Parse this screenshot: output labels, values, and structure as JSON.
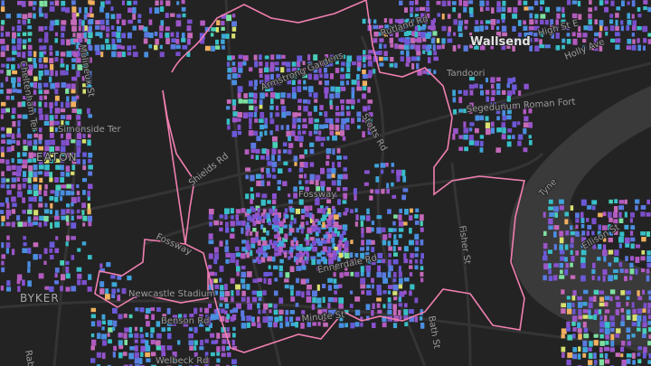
{
  "map": {
    "labels": {
      "town": "Wallsend",
      "high_st": "High St E",
      "holly": "Holly Ave",
      "rutland": "Rutland Rd",
      "tandoori": "Tandoori",
      "fort": "Segedunum Roman Fort",
      "tyne": "Tyne",
      "stotts": "Stotts Rd",
      "fossway_1": "Fossway",
      "fossway_2": "Fossway",
      "shields": "Shields Rd",
      "fisher": "Fisher St",
      "ellison": "Ellison St",
      "ennerdale": "Ennerdale Rd",
      "stadium": "Newcastle Stadium",
      "benson": "Benson Rd",
      "welbeck": "Welbeck Rd",
      "minute": "Minute St",
      "bath": "Bath St",
      "heaton": "EATON",
      "byker": "BYKER",
      "simonside": "Simonside Ter",
      "molineux": "Molineux St",
      "cheltenham": "Cheltenham Ter",
      "gardens": "Armstrong Gardens",
      "rab": "Rab"
    }
  }
}
